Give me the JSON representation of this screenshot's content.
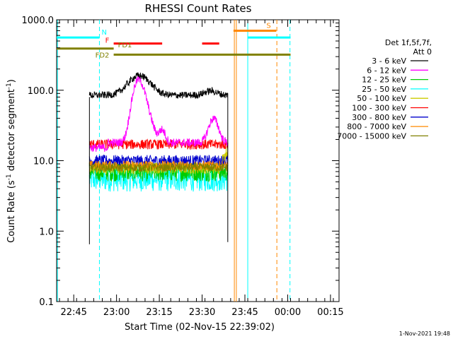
{
  "chart_data": {
    "type": "line",
    "title": "RHESSI Count Rates",
    "xlabel": "Start Time (02-Nov-15 22:39:02)",
    "ylabel_main": "Count Rate (s",
    "ylabel_sup": "-1",
    "ylabel_tail": " detector segment",
    "ylabel_end": ")",
    "y_log": true,
    "ylim": [
      0.1,
      1000
    ],
    "y_ticks": [
      {
        "v": 0.1,
        "label": "0.1"
      },
      {
        "v": 1,
        "label": "1.0"
      },
      {
        "v": 10,
        "label": "10.0"
      },
      {
        "v": 100,
        "label": "100.0"
      },
      {
        "v": 1000,
        "label": "1000.0"
      }
    ],
    "xlim_minutes_after_22_39": [
      0,
      99
    ],
    "x_ticks": [
      {
        "m": 6,
        "label": "22:45"
      },
      {
        "m": 21,
        "label": "23:00"
      },
      {
        "m": 36,
        "label": "23:15"
      },
      {
        "m": 51,
        "label": "23:30"
      },
      {
        "m": 66,
        "label": "23:45"
      },
      {
        "m": 81,
        "label": "00:00"
      },
      {
        "m": 96,
        "label": "00:15"
      }
    ],
    "legend_header": [
      "Det 1f,5f,7f,",
      "Att 0"
    ],
    "legend_position": "right",
    "series": [
      {
        "name": "3 - 6 keV",
        "color": "#000000",
        "base": 85,
        "noise": 0.05
      },
      {
        "name": "6 - 12 keV",
        "color": "#ff00ff",
        "base": 18,
        "noise": 0.06
      },
      {
        "name": "12 - 25 keV",
        "color": "#00cc00",
        "base": 7,
        "noise": 0.14
      },
      {
        "name": "25 - 50 keV",
        "color": "#00ffff",
        "base": 5.5,
        "noise": 0.18
      },
      {
        "name": "50 - 100 keV",
        "color": "#cccc00",
        "base": 8,
        "noise": 0.09
      },
      {
        "name": "100 - 300 keV",
        "color": "#ff0000",
        "base": 17,
        "noise": 0.07
      },
      {
        "name": "300 - 800 keV",
        "color": "#0000cc",
        "base": 10,
        "noise": 0.08
      },
      {
        "name": "800 - 7000 keV",
        "color": "#ff8800",
        "base": 8.5,
        "noise": 0.07
      },
      {
        "name": "7000 - 15000 keV",
        "color": "#808000",
        "base": 8,
        "noise": 0.06
      }
    ],
    "flags": [
      {
        "label": "N",
        "color": "#00ffff",
        "y": 560,
        "segments": [
          [
            0,
            15
          ],
          [
            67,
            82
          ]
        ]
      },
      {
        "label": "F",
        "color": "#ff0000",
        "y": 460,
        "segments": [
          [
            20,
            37
          ],
          [
            51,
            57
          ]
        ]
      },
      {
        "label": "FD1",
        "color": "#808000",
        "y": 390,
        "segments": [
          [
            0,
            20
          ]
        ]
      },
      {
        "label": "S",
        "color": "#ff8800",
        "y": 700,
        "segments": [
          [
            62,
            77
          ]
        ]
      },
      {
        "label": "FD2",
        "color": "#808000",
        "y": 320,
        "segments": [
          [
            20,
            82
          ]
        ]
      }
    ],
    "vlines": [
      {
        "m": 0.3,
        "color": "#00ffff",
        "dash": false
      },
      {
        "m": 15,
        "color": "#00ffff",
        "dash": true
      },
      {
        "m": 62.3,
        "color": "#ff8800",
        "dash": false
      },
      {
        "m": 63,
        "color": "#ff8800",
        "dash": false
      },
      {
        "m": 67,
        "color": "#00ffff",
        "dash": false
      },
      {
        "m": 77.2,
        "color": "#ff8800",
        "dash": true
      },
      {
        "m": 81.8,
        "color": "#00ffff",
        "dash": true
      }
    ],
    "data_window_minutes": [
      11.5,
      60
    ]
  },
  "footer": {
    "timestamp": "1-Nov-2021 19:48"
  }
}
